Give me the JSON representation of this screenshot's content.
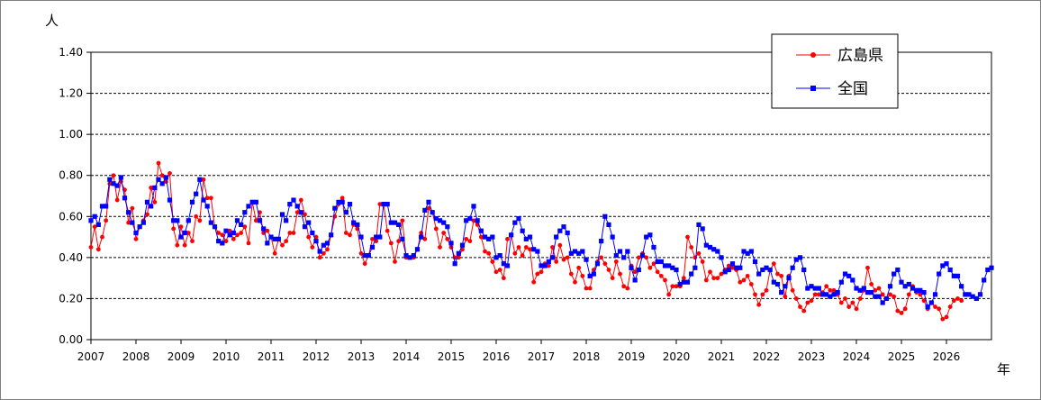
{
  "chart_data": {
    "type": "line",
    "y_unit_label": "人",
    "x_unit_label": "年",
    "ylim": [
      0,
      1.4
    ],
    "y_ticks": [
      "0.00",
      "0.20",
      "0.40",
      "0.60",
      "0.80",
      "1.00",
      "1.20",
      "1.40"
    ],
    "x_ticks": [
      "2007",
      "2008",
      "2009",
      "2010",
      "2011",
      "2012",
      "2013",
      "2014",
      "2015",
      "2016",
      "2017",
      "2018",
      "2019",
      "2020",
      "2021",
      "2022",
      "2023",
      "2024",
      "2025",
      "2026"
    ],
    "x_start_year": 2007,
    "grid": "horizontal dashed",
    "legend_position": "top-right",
    "series": [
      {
        "name": "広島県",
        "color": "#ff0000",
        "marker": "circle",
        "values": [
          0.45,
          0.55,
          0.44,
          0.5,
          0.58,
          0.76,
          0.8,
          0.68,
          0.77,
          0.73,
          0.57,
          0.64,
          0.49,
          0.55,
          0.58,
          0.61,
          0.74,
          0.67,
          0.86,
          0.8,
          0.77,
          0.81,
          0.54,
          0.46,
          0.55,
          0.46,
          0.52,
          0.48,
          0.6,
          0.58,
          0.78,
          0.69,
          0.69,
          0.55,
          0.52,
          0.51,
          0.48,
          0.53,
          0.49,
          0.51,
          0.52,
          0.55,
          0.47,
          0.67,
          0.58,
          0.62,
          0.52,
          0.53,
          0.5,
          0.42,
          0.49,
          0.46,
          0.48,
          0.52,
          0.52,
          0.62,
          0.68,
          0.61,
          0.5,
          0.45,
          0.5,
          0.4,
          0.42,
          0.44,
          0.51,
          0.6,
          0.66,
          0.69,
          0.52,
          0.51,
          0.56,
          0.54,
          0.42,
          0.37,
          0.41,
          0.49,
          0.48,
          0.66,
          0.66,
          0.53,
          0.47,
          0.38,
          0.48,
          0.58,
          0.4,
          0.4,
          0.4,
          0.44,
          0.52,
          0.49,
          0.64,
          0.62,
          0.54,
          0.45,
          0.52,
          0.49,
          0.45,
          0.4,
          0.4,
          0.44,
          0.49,
          0.48,
          0.58,
          0.56,
          0.5,
          0.43,
          0.42,
          0.38,
          0.33,
          0.34,
          0.3,
          0.49,
          0.51,
          0.42,
          0.45,
          0.41,
          0.45,
          0.44,
          0.28,
          0.32,
          0.33,
          0.37,
          0.36,
          0.45,
          0.38,
          0.46,
          0.39,
          0.4,
          0.32,
          0.28,
          0.35,
          0.31,
          0.25,
          0.25,
          0.34,
          0.38,
          0.4,
          0.37,
          0.34,
          0.3,
          0.38,
          0.32,
          0.26,
          0.25,
          0.36,
          0.33,
          0.4,
          0.42,
          0.4,
          0.35,
          0.37,
          0.33,
          0.31,
          0.29,
          0.22,
          0.26,
          0.26,
          0.26,
          0.3,
          0.5,
          0.45,
          0.4,
          0.42,
          0.38,
          0.29,
          0.33,
          0.3,
          0.3,
          0.32,
          0.34,
          0.36,
          0.35,
          0.34,
          0.28,
          0.29,
          0.31,
          0.27,
          0.22,
          0.17,
          0.22,
          0.24,
          0.34,
          0.37,
          0.32,
          0.31,
          0.21,
          0.31,
          0.24,
          0.2,
          0.16,
          0.14,
          0.18,
          0.19,
          0.22,
          0.22,
          0.23,
          0.26,
          0.24,
          0.24,
          0.22,
          0.18,
          0.2,
          0.16,
          0.18,
          0.15,
          0.2,
          0.24,
          0.35,
          0.27,
          0.24,
          0.25,
          0.22,
          0.2,
          0.22,
          0.21,
          0.14,
          0.13,
          0.15,
          0.22,
          0.26,
          0.23,
          0.22,
          0.19,
          0.15,
          0.18,
          0.16,
          0.15,
          0.1,
          0.11,
          0.16,
          0.19,
          0.2,
          0.19
        ]
      },
      {
        "name": "全国",
        "color": "#0000ff",
        "marker": "square",
        "values": [
          0.58,
          0.6,
          0.56,
          0.65,
          0.65,
          0.78,
          0.76,
          0.75,
          0.79,
          0.69,
          0.62,
          0.57,
          0.52,
          0.55,
          0.57,
          0.67,
          0.65,
          0.74,
          0.78,
          0.76,
          0.79,
          0.68,
          0.58,
          0.58,
          0.5,
          0.52,
          0.58,
          0.67,
          0.71,
          0.78,
          0.68,
          0.65,
          0.57,
          0.55,
          0.48,
          0.47,
          0.53,
          0.51,
          0.52,
          0.58,
          0.56,
          0.62,
          0.65,
          0.67,
          0.67,
          0.58,
          0.54,
          0.47,
          0.5,
          0.49,
          0.49,
          0.61,
          0.58,
          0.66,
          0.68,
          0.65,
          0.62,
          0.55,
          0.57,
          0.52,
          0.48,
          0.43,
          0.46,
          0.47,
          0.51,
          0.64,
          0.67,
          0.67,
          0.62,
          0.66,
          0.57,
          0.56,
          0.5,
          0.41,
          0.41,
          0.45,
          0.5,
          0.5,
          0.66,
          0.66,
          0.57,
          0.57,
          0.56,
          0.49,
          0.41,
          0.4,
          0.41,
          0.44,
          0.5,
          0.63,
          0.67,
          0.62,
          0.59,
          0.58,
          0.57,
          0.55,
          0.47,
          0.37,
          0.42,
          0.46,
          0.58,
          0.59,
          0.65,
          0.58,
          0.53,
          0.5,
          0.49,
          0.5,
          0.4,
          0.41,
          0.37,
          0.36,
          0.51,
          0.57,
          0.59,
          0.53,
          0.49,
          0.5,
          0.44,
          0.43,
          0.36,
          0.36,
          0.38,
          0.4,
          0.5,
          0.53,
          0.55,
          0.52,
          0.42,
          0.43,
          0.42,
          0.43,
          0.39,
          0.31,
          0.32,
          0.37,
          0.48,
          0.6,
          0.56,
          0.5,
          0.41,
          0.43,
          0.4,
          0.43,
          0.35,
          0.29,
          0.34,
          0.41,
          0.5,
          0.51,
          0.45,
          0.38,
          0.38,
          0.36,
          0.36,
          0.35,
          0.34,
          0.27,
          0.28,
          0.28,
          0.32,
          0.35,
          0.56,
          0.54,
          0.46,
          0.45,
          0.44,
          0.43,
          0.4,
          0.33,
          0.34,
          0.37,
          0.35,
          0.35,
          0.43,
          0.42,
          0.43,
          0.38,
          0.32,
          0.34,
          0.35,
          0.34,
          0.28,
          0.27,
          0.23,
          0.26,
          0.3,
          0.35,
          0.39,
          0.4,
          0.34,
          0.25,
          0.26,
          0.25,
          0.25,
          0.22,
          0.22,
          0.21,
          0.22,
          0.23,
          0.28,
          0.32,
          0.31,
          0.29,
          0.25,
          0.24,
          0.25,
          0.23,
          0.23,
          0.21,
          0.21,
          0.18,
          0.2,
          0.26,
          0.32,
          0.34,
          0.28,
          0.26,
          0.27,
          0.25,
          0.24,
          0.24,
          0.23,
          0.16,
          0.18,
          0.22,
          0.32,
          0.36,
          0.37,
          0.34,
          0.31,
          0.31,
          0.26,
          0.22,
          0.22,
          0.21,
          0.2,
          0.22,
          0.29,
          0.34,
          0.35
        ]
      }
    ]
  }
}
